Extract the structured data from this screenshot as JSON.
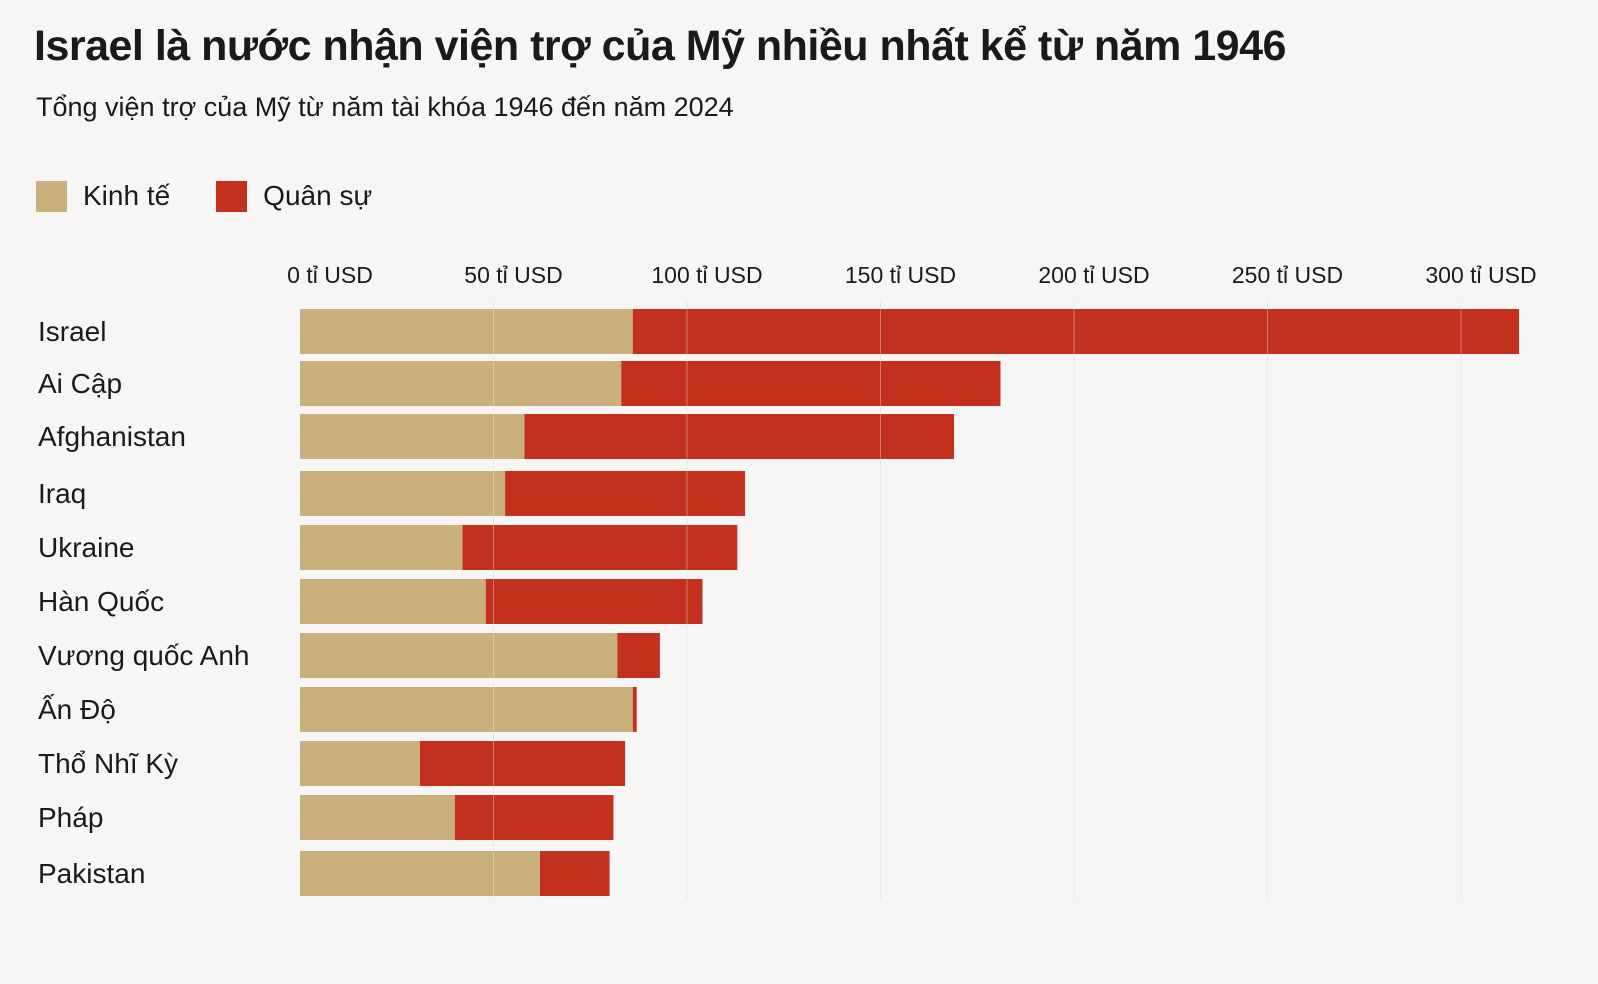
{
  "chart_data": {
    "type": "bar",
    "orientation": "horizontal",
    "stacked": true,
    "title": "Israel là nước nhận viện trợ của Mỹ nhiều nhất kể từ năm 1946",
    "subtitle": "Tổng viện trợ của Mỹ từ năm tài khóa 1946 đến năm 2024",
    "categories": [
      "Israel",
      "Ai Cập",
      "Afghanistan",
      "Iraq",
      "Ukraine",
      "Hàn Quốc",
      "Vương quốc Anh",
      "Ấn Độ",
      "Thổ Nhĩ Kỳ",
      "Pháp",
      "Pakistan"
    ],
    "series": [
      {
        "name": "Kinh tế",
        "color": "#c9b07c",
        "values": [
          86,
          83,
          58,
          53,
          42,
          48,
          82,
          86,
          31,
          40,
          62
        ]
      },
      {
        "name": "Quân sự",
        "color": "#c4301e",
        "values": [
          229,
          98,
          111,
          62,
          71,
          56,
          11,
          1,
          53,
          41,
          18
        ]
      }
    ],
    "x_ticks": [
      0,
      50,
      100,
      150,
      200,
      250,
      300
    ],
    "x_tick_labels": [
      "0 tỉ USD",
      "50 tỉ USD",
      "100 tỉ USD",
      "150 tỉ USD",
      "200 tỉ USD",
      "250 tỉ USD",
      "300 tỉ USD"
    ],
    "xlim": [
      0,
      320
    ],
    "axis_position": "top",
    "grid": true,
    "legend_position": "top-left"
  }
}
